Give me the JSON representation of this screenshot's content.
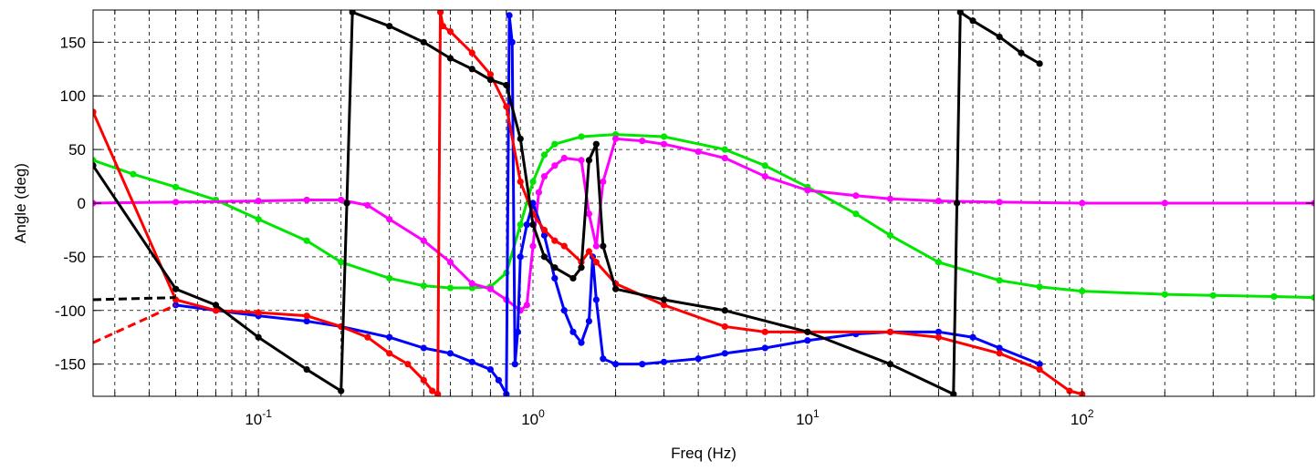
{
  "chart_data": {
    "type": "line",
    "title": "",
    "xlabel": "Freq (Hz)",
    "ylabel": "Angle (deg)",
    "xscale": "log",
    "xlim": [
      0.025,
      700
    ],
    "ylim": [
      -180,
      180
    ],
    "grid": true,
    "legend": "none",
    "x_ticks": [
      {
        "base": "10",
        "exp": "-1",
        "value": 0.1
      },
      {
        "base": "10",
        "exp": "0",
        "value": 1
      },
      {
        "base": "10",
        "exp": "1",
        "value": 10
      },
      {
        "base": "10",
        "exp": "2",
        "value": 100
      }
    ],
    "y_ticks": [
      150,
      100,
      50,
      0,
      -50,
      -100,
      -150
    ],
    "series": [
      {
        "color": "#00e600",
        "style": "solid-dots",
        "x": [
          0.025,
          0.035,
          0.05,
          0.07,
          0.1,
          0.15,
          0.2,
          0.3,
          0.4,
          0.5,
          0.6,
          0.7,
          0.8,
          0.9,
          1.0,
          1.1,
          1.2,
          1.5,
          2,
          3,
          5,
          7,
          10,
          15,
          20,
          30,
          50,
          70,
          100,
          200,
          300,
          500,
          700
        ],
        "y": [
          40,
          27,
          15,
          3,
          -15,
          -35,
          -55,
          -70,
          -77,
          -79,
          -79,
          -78,
          -65,
          -20,
          20,
          45,
          55,
          62,
          64,
          62,
          50,
          35,
          15,
          -10,
          -30,
          -55,
          -72,
          -78,
          -82,
          -85,
          -86,
          -87,
          -88
        ]
      },
      {
        "color": "#ff00ff",
        "style": "solid-dots",
        "x": [
          0.025,
          0.05,
          0.1,
          0.15,
          0.2,
          0.25,
          0.3,
          0.4,
          0.5,
          0.6,
          0.7,
          0.8,
          0.9,
          0.95,
          1.0,
          1.05,
          1.1,
          1.2,
          1.3,
          1.5,
          1.6,
          1.7,
          1.8,
          2.0,
          2.5,
          3,
          4,
          5,
          7,
          10,
          15,
          20,
          30,
          50,
          100,
          200,
          700
        ],
        "y": [
          0,
          1,
          2,
          3,
          3,
          -2,
          -15,
          -35,
          -55,
          -75,
          -80,
          -90,
          -100,
          -95,
          -40,
          10,
          25,
          35,
          42,
          40,
          -10,
          -40,
          20,
          60,
          58,
          55,
          48,
          42,
          25,
          12,
          7,
          4,
          2,
          1,
          0,
          0,
          0
        ]
      },
      {
        "color": "#0000ff",
        "style": "solid-dots",
        "x": [
          0.05,
          0.07,
          0.1,
          0.15,
          0.2,
          0.3,
          0.4,
          0.5,
          0.6,
          0.7,
          0.75,
          0.8,
          0.82,
          0.84,
          0.86,
          0.88,
          0.9,
          0.95,
          1.0,
          1.1,
          1.2,
          1.3,
          1.4,
          1.5,
          1.6,
          1.65,
          1.7,
          1.8,
          2.0,
          2.5,
          3,
          4,
          5,
          7,
          10,
          15,
          20,
          30,
          40,
          50,
          70
        ],
        "y": [
          -95,
          -100,
          -105,
          -110,
          -115,
          -125,
          -135,
          -140,
          -148,
          -155,
          -165,
          -178,
          175,
          150,
          -150,
          -120,
          -50,
          -20,
          0,
          -30,
          -70,
          -100,
          -120,
          -130,
          -110,
          -50,
          -90,
          -145,
          -150,
          -150,
          -148,
          -145,
          -140,
          -135,
          -128,
          -122,
          -120,
          -120,
          -125,
          -135,
          -150
        ]
      },
      {
        "color": "#ff0000",
        "style": "solid-dots",
        "x": [
          0.025,
          0.05,
          0.07,
          0.1,
          0.15,
          0.2,
          0.25,
          0.3,
          0.35,
          0.4,
          0.43,
          0.45,
          0.46,
          0.47,
          0.5,
          0.6,
          0.7,
          0.8,
          0.9,
          1.0,
          1.1,
          1.2,
          1.3,
          1.5,
          1.6,
          1.7,
          2,
          3,
          5,
          7,
          10,
          20,
          30,
          50,
          70,
          90,
          100
        ],
        "y": [
          85,
          -90,
          -100,
          -102,
          -105,
          -115,
          -125,
          -140,
          -150,
          -165,
          -175,
          -178,
          178,
          165,
          160,
          140,
          120,
          90,
          20,
          -10,
          -25,
          -35,
          -40,
          -55,
          -45,
          -55,
          -75,
          -95,
          -115,
          -120,
          -120,
          -120,
          -125,
          -140,
          -155,
          -175,
          -178
        ]
      },
      {
        "color": "#000000",
        "style": "solid-dots",
        "x": [
          0.025,
          0.05,
          0.07,
          0.1,
          0.15,
          0.2,
          0.21,
          0.22,
          0.3,
          0.4,
          0.5,
          0.6,
          0.7,
          0.8,
          0.9,
          1.0,
          1.1,
          1.2,
          1.4,
          1.5,
          1.6,
          1.7,
          1.8,
          2.0,
          3,
          5,
          10,
          20,
          34,
          35,
          36,
          40,
          50,
          60,
          70
        ],
        "y": [
          35,
          -80,
          -95,
          -125,
          -155,
          -175,
          0,
          178,
          165,
          150,
          135,
          125,
          115,
          110,
          60,
          -20,
          -50,
          -60,
          -70,
          -60,
          40,
          55,
          -40,
          -80,
          -90,
          -100,
          -120,
          -150,
          -178,
          0,
          178,
          170,
          155,
          140,
          130
        ]
      },
      {
        "color": "#000000",
        "style": "dashed",
        "x": [
          0.025,
          0.05
        ],
        "y": [
          -90,
          -88
        ]
      },
      {
        "color": "#ff0000",
        "style": "dashed",
        "x": [
          0.025,
          0.05
        ],
        "y": [
          -130,
          -95
        ]
      }
    ]
  }
}
